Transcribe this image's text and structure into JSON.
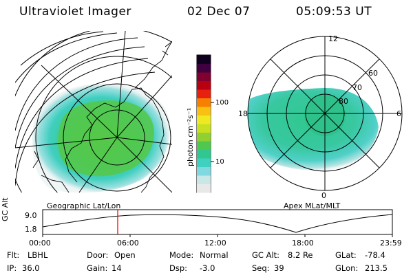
{
  "header": {
    "title": "Ultraviolet Imager",
    "date": "02 Dec 07",
    "time": "05:09:53 UT"
  },
  "geo_panel": {
    "label": "Geographic Lat/Lon"
  },
  "apex_panel": {
    "label": "Apex MLat/MLT",
    "lat_labels": [
      "60",
      "70",
      "80"
    ],
    "mlt_labels": [
      "12",
      "18",
      "6",
      "0"
    ]
  },
  "colorbar": {
    "unit_label": "photon cm⁻²s⁻¹",
    "ticks": [
      "100",
      "10"
    ],
    "colors": [
      "#e8e8e8",
      "#c8e8e8",
      "#80d8e0",
      "#40d0c0",
      "#30c890",
      "#50c850",
      "#90d030",
      "#c8e020",
      "#f0e820",
      "#f8c010",
      "#f88000",
      "#e82010",
      "#b80010",
      "#800030",
      "#400040",
      "#100020"
    ]
  },
  "altitude_plot": {
    "ylabel": "GC Alt",
    "y_ticks": [
      "9.0",
      "1.8"
    ],
    "x_ticks": [
      "00:00",
      "06:00",
      "12:00",
      "18:00",
      "23:59"
    ],
    "current_time_marker": "05:09",
    "marker_color": "#ff0000"
  },
  "info": {
    "row1": [
      {
        "key": "Flt:",
        "value": "LBHL"
      },
      {
        "key": "Door:",
        "value": "Open"
      },
      {
        "key": "Mode:",
        "value": "Normal"
      },
      {
        "key": "GC Alt:",
        "value": "8.2 Re"
      },
      {
        "key": "GLat:",
        "value": "-78.4"
      }
    ],
    "row2": [
      {
        "key": "IP:",
        "value": "36.0"
      },
      {
        "key": "Gain:",
        "value": "14"
      },
      {
        "key": "Dsp:",
        "value": "-3.0"
      },
      {
        "key": "Seq:",
        "value": "39"
      },
      {
        "key": "GLon:",
        "value": "213.5"
      }
    ]
  }
}
